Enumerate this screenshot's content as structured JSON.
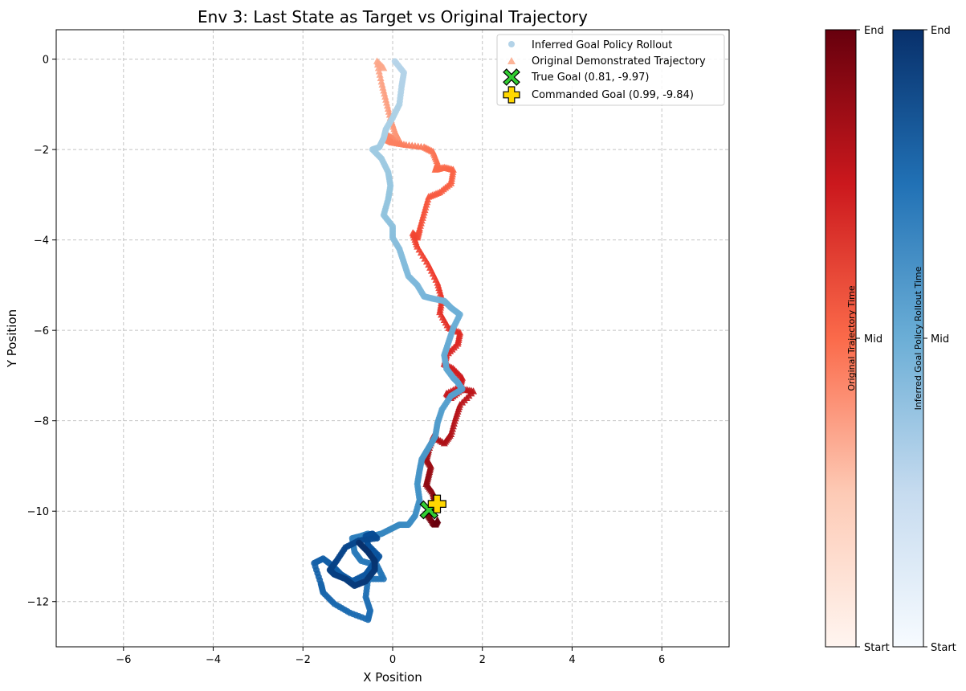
{
  "chart_data": {
    "type": "scatter",
    "title": "Env 3: Last State as Target vs Original Trajectory",
    "xlabel": "X Position",
    "ylabel": "Y Position",
    "xlim": [
      -7.5,
      7.5
    ],
    "ylim": [
      -13.0,
      0.65
    ],
    "xticks": [
      -6,
      -4,
      -2,
      0,
      2,
      4,
      6
    ],
    "xtick_labels": [
      "−6",
      "−4",
      "−2",
      "0",
      "2",
      "4",
      "6"
    ],
    "yticks": [
      0,
      -2,
      -4,
      -6,
      -8,
      -10,
      -12
    ],
    "ytick_labels": [
      "0",
      "−2",
      "−4",
      "−6",
      "−8",
      "−10",
      "−12"
    ],
    "grid": true,
    "legend": {
      "placement": "top-right",
      "entries": [
        {
          "label": "Inferred Goal Policy Rollout",
          "marker": "circle",
          "color": "#b3d3e8"
        },
        {
          "label": "Original Demonstrated Trajectory",
          "marker": "triangle",
          "color": "#fcb499"
        },
        {
          "label": "True Goal (0.81, -9.97)",
          "marker": "x",
          "color": "#32cd32"
        },
        {
          "label": "Commanded Goal (0.99, -9.84)",
          "marker": "plus",
          "color": "#ffd700"
        }
      ]
    },
    "series": [
      {
        "name": "Original Demonstrated Trajectory",
        "marker": "triangle",
        "colormap": "Reds",
        "x": [
          -0.2,
          -0.35,
          -0.25,
          -0.15,
          -0.05,
          0.05,
          0.15,
          0.1,
          0.0,
          -0.1,
          -0.1,
          0.0,
          0.3,
          0.7,
          0.9,
          1.0,
          0.95,
          1.15,
          1.35,
          1.3,
          1.05,
          0.8,
          0.7,
          0.6,
          0.55,
          0.45,
          0.55,
          0.8,
          1.0,
          1.1,
          1.05,
          1.25,
          1.5,
          1.45,
          1.2,
          1.15,
          1.35,
          1.55,
          1.5,
          1.2,
          1.3,
          1.55,
          1.8,
          1.5,
          1.4,
          1.3,
          1.15,
          0.9,
          0.8,
          0.75,
          0.85,
          0.8,
          0.75,
          0.9,
          0.95,
          0.85,
          0.8,
          0.9,
          0.95,
          1.0
        ],
        "y": [
          -0.2,
          -0.05,
          -0.5,
          -0.9,
          -1.3,
          -1.6,
          -1.8,
          -1.85,
          -1.75,
          -1.7,
          -1.8,
          -1.85,
          -1.9,
          -1.95,
          -2.05,
          -2.3,
          -2.45,
          -2.4,
          -2.45,
          -2.75,
          -2.95,
          -3.05,
          -3.4,
          -3.75,
          -3.95,
          -3.85,
          -4.15,
          -4.55,
          -4.95,
          -5.3,
          -5.6,
          -5.95,
          -6.05,
          -6.3,
          -6.55,
          -6.75,
          -6.85,
          -7.05,
          -7.25,
          -7.4,
          -7.5,
          -7.3,
          -7.35,
          -7.65,
          -7.95,
          -8.3,
          -8.5,
          -8.35,
          -8.65,
          -8.85,
          -9.0,
          -9.2,
          -9.4,
          -9.6,
          -9.8,
          -10.0,
          -10.1,
          -10.25,
          -10.3,
          -10.2
        ]
      },
      {
        "name": "Inferred Goal Policy Rollout",
        "marker": "circle",
        "colormap": "Blues",
        "x": [
          0.05,
          0.25,
          0.2,
          0.15,
          0.0,
          -0.15,
          -0.2,
          -0.3,
          -0.45,
          -0.25,
          -0.1,
          -0.05,
          -0.1,
          -0.2,
          0.0,
          0.0,
          0.15,
          0.25,
          0.35,
          0.55,
          0.7,
          0.9,
          1.15,
          1.3,
          1.5,
          1.35,
          1.25,
          1.15,
          1.2,
          1.35,
          1.45,
          1.55,
          1.3,
          1.1,
          1.0,
          0.95,
          0.8,
          0.65,
          0.6,
          0.55,
          0.6,
          0.5,
          0.35,
          0.15,
          -0.05,
          -0.25,
          -0.45,
          -0.55,
          -0.7,
          -0.9,
          -0.85,
          -0.7,
          -0.35,
          -0.2,
          -0.55,
          -0.6,
          -0.5,
          -0.55,
          -0.95,
          -1.3,
          -1.55,
          -1.6,
          -1.75,
          -1.55,
          -1.35,
          -1.15,
          -0.9,
          -0.6,
          -0.45,
          -0.3,
          -0.55,
          -0.6,
          -0.45,
          -0.35,
          -0.75,
          -1.05,
          -1.25,
          -1.4,
          -1.3,
          -1.05,
          -0.85,
          -0.6,
          -0.4,
          -0.4,
          -0.55,
          -0.75
        ],
        "y": [
          -0.05,
          -0.3,
          -0.6,
          -1.0,
          -1.3,
          -1.55,
          -1.75,
          -1.95,
          -2.0,
          -2.2,
          -2.5,
          -2.8,
          -3.1,
          -3.45,
          -3.7,
          -3.95,
          -4.2,
          -4.5,
          -4.8,
          -5.0,
          -5.25,
          -5.3,
          -5.35,
          -5.5,
          -5.65,
          -5.95,
          -6.25,
          -6.55,
          -6.85,
          -7.05,
          -7.15,
          -7.3,
          -7.45,
          -7.75,
          -8.05,
          -8.35,
          -8.6,
          -8.85,
          -9.1,
          -9.4,
          -9.75,
          -10.1,
          -10.3,
          -10.3,
          -10.4,
          -10.5,
          -10.55,
          -10.5,
          -10.55,
          -10.6,
          -10.9,
          -11.1,
          -11.2,
          -11.5,
          -11.5,
          -11.9,
          -12.2,
          -12.4,
          -12.25,
          -12.05,
          -11.8,
          -11.6,
          -11.15,
          -11.05,
          -11.2,
          -11.4,
          -11.55,
          -11.4,
          -11.2,
          -11.0,
          -10.75,
          -10.55,
          -10.5,
          -10.6,
          -10.65,
          -10.8,
          -11.1,
          -11.3,
          -11.4,
          -11.5,
          -11.65,
          -11.55,
          -11.3,
          -11.1,
          -10.9,
          -10.7
        ]
      }
    ],
    "true_goal": {
      "x": 0.81,
      "y": -9.97
    },
    "commanded_goal": {
      "x": 0.99,
      "y": -9.84
    },
    "colorbars": [
      {
        "label": "Original Trajectory Time",
        "colormap": "Reds",
        "ticks": [
          "Start",
          "Mid",
          "End"
        ]
      },
      {
        "label": "Inferred Goal Policy Rollout Time",
        "colormap": "Blues",
        "ticks": [
          "Start",
          "Mid",
          "End"
        ]
      }
    ]
  }
}
